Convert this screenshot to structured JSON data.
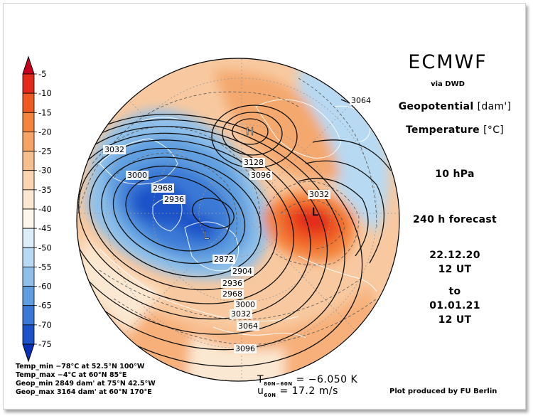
{
  "header": {
    "title": "ECMWF",
    "subtitle": "via DWD",
    "line1_text": "Geopotential",
    "line1_unit": "[dam']",
    "line2_text": "Temperature",
    "line2_unit": "[°C]",
    "level": "10 hPa",
    "forecast": "240 h forecast",
    "init_date": "22.12.20",
    "init_time": "12 UT",
    "to_word": "to",
    "valid_date": "01.01.21",
    "valid_time": "12 UT"
  },
  "colorbar": {
    "labels": [
      "-5",
      "-10",
      "-15",
      "-20",
      "-25",
      "-30",
      "-35",
      "-40",
      "-45",
      "-50",
      "-55",
      "-60",
      "-65",
      "-70",
      "-75"
    ],
    "colors": [
      "#c8001e",
      "#e32a1a",
      "#ef5a22",
      "#f4843c",
      "#f7a364",
      "#f8bf8e",
      "#f9d5b0",
      "#fbe8d2",
      "#fdf6ec",
      "#dcecf8",
      "#b7d9f2",
      "#8ec0ea",
      "#5f9ee0",
      "#3a79d6",
      "#1b52c8",
      "#0a2fb8"
    ]
  },
  "map": {
    "contour_labels": [
      "3064",
      "3032",
      "3000",
      "2968",
      "2936",
      "3128",
      "3096",
      "3032",
      "2872",
      "2904",
      "2936",
      "2968",
      "3000",
      "3032",
      "3064",
      "3096"
    ],
    "pressure_labels": [
      "H",
      "L",
      "L"
    ]
  },
  "stats": {
    "temp_min": "Temp_min −78°C at 52.5°N 100°W",
    "temp_max": "Temp_max −4°C at 60°N 85°E",
    "geop_min": "Geop_min 2849 dam' at 75°N 42.5°W",
    "geop_max": "Geop_max 3164 dam' at 60°N 170°E"
  },
  "diagnostics": {
    "t_symbol": "T",
    "t_sub": "80N−60N",
    "t_value": "=  −6.050 K",
    "u_symbol": "u",
    "u_sub": "60N",
    "u_value": "=  17.2 m/s"
  },
  "credit": "Plot produced by FU Berlin"
}
